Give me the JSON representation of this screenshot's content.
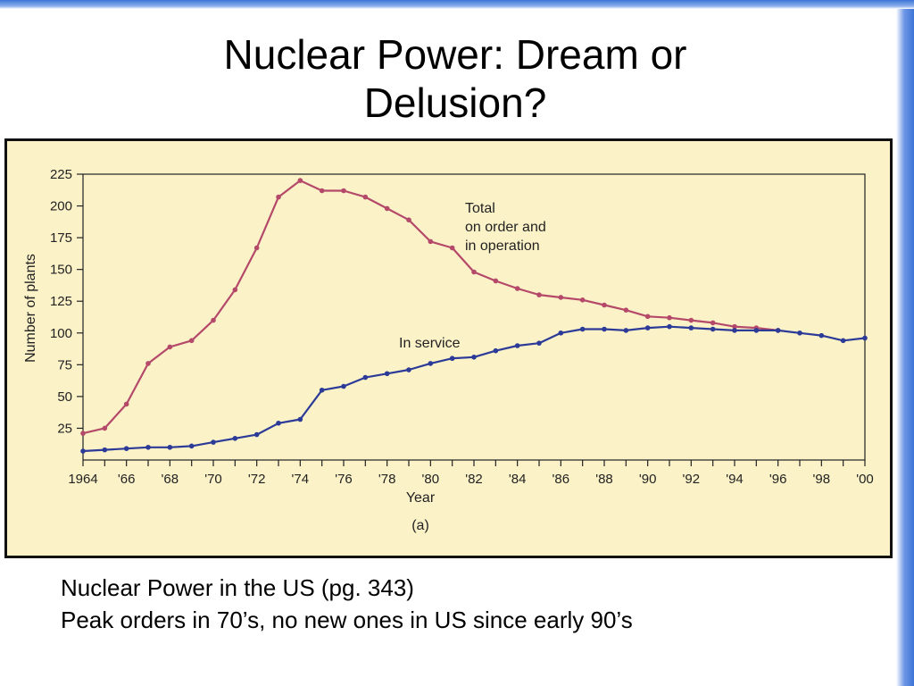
{
  "slide": {
    "title_line1": "Nuclear Power: Dream or",
    "title_line2": "Delusion?",
    "caption_line1": "Nuclear Power in the US (pg. 343)",
    "caption_line2": "Peak orders in 70’s, no new ones in US since early 90’s"
  },
  "colors": {
    "total_series": "#b4496a",
    "service_series": "#2c3a98",
    "panel_background": "#fbf2c8",
    "accent_blue": "#3d74d6"
  },
  "chart_data": {
    "type": "line",
    "xlabel": "Year",
    "ylabel": "Number of plants",
    "sublabel": "(a)",
    "xlim": [
      1964,
      2000
    ],
    "ylim": [
      0,
      225
    ],
    "yticks": [
      25,
      50,
      75,
      100,
      125,
      150,
      175,
      200,
      225
    ],
    "xticks": [
      {
        "value": 1964,
        "label": "1964"
      },
      {
        "value": 1966,
        "label": "'66"
      },
      {
        "value": 1968,
        "label": "'68"
      },
      {
        "value": 1970,
        "label": "'70"
      },
      {
        "value": 1972,
        "label": "'72"
      },
      {
        "value": 1974,
        "label": "'74"
      },
      {
        "value": 1976,
        "label": "'76"
      },
      {
        "value": 1978,
        "label": "'78"
      },
      {
        "value": 1980,
        "label": "'80"
      },
      {
        "value": 1982,
        "label": "'82"
      },
      {
        "value": 1984,
        "label": "'84"
      },
      {
        "value": 1986,
        "label": "'86"
      },
      {
        "value": 1988,
        "label": "'88"
      },
      {
        "value": 1990,
        "label": "'90"
      },
      {
        "value": 1992,
        "label": "'92"
      },
      {
        "value": 1994,
        "label": "'94"
      },
      {
        "value": 1996,
        "label": "'96"
      },
      {
        "value": 1998,
        "label": "'98"
      },
      {
        "value": 2000,
        "label": "'00"
      }
    ],
    "grid": false,
    "series": [
      {
        "name": "Total on order and in operation",
        "label_lines": [
          "Total",
          "on order and",
          "in operation"
        ],
        "color": "#b4496a",
        "x": [
          1964,
          1965,
          1966,
          1967,
          1968,
          1969,
          1970,
          1971,
          1972,
          1973,
          1974,
          1975,
          1976,
          1977,
          1978,
          1979,
          1980,
          1981,
          1982,
          1983,
          1984,
          1985,
          1986,
          1987,
          1988,
          1989,
          1990,
          1991,
          1992,
          1993,
          1994,
          1995,
          1996
        ],
        "y": [
          21,
          25,
          44,
          76,
          89,
          94,
          110,
          134,
          167,
          207,
          220,
          212,
          212,
          207,
          198,
          189,
          172,
          167,
          148,
          141,
          135,
          130,
          128,
          126,
          122,
          118,
          113,
          112,
          110,
          108,
          105,
          104,
          102
        ]
      },
      {
        "name": "In service",
        "label_lines": [
          "In service"
        ],
        "color": "#2c3a98",
        "x": [
          1964,
          1965,
          1966,
          1967,
          1968,
          1969,
          1970,
          1971,
          1972,
          1973,
          1974,
          1975,
          1976,
          1977,
          1978,
          1979,
          1980,
          1981,
          1982,
          1983,
          1984,
          1985,
          1986,
          1987,
          1988,
          1989,
          1990,
          1991,
          1992,
          1993,
          1994,
          1995,
          1996,
          1997,
          1998,
          1999,
          2000
        ],
        "y": [
          7,
          8,
          9,
          10,
          10,
          11,
          14,
          17,
          20,
          29,
          32,
          55,
          58,
          65,
          68,
          71,
          76,
          80,
          81,
          86,
          90,
          92,
          100,
          103,
          103,
          102,
          104,
          105,
          104,
          103,
          102,
          102,
          102,
          100,
          98,
          94,
          96
        ]
      }
    ]
  }
}
